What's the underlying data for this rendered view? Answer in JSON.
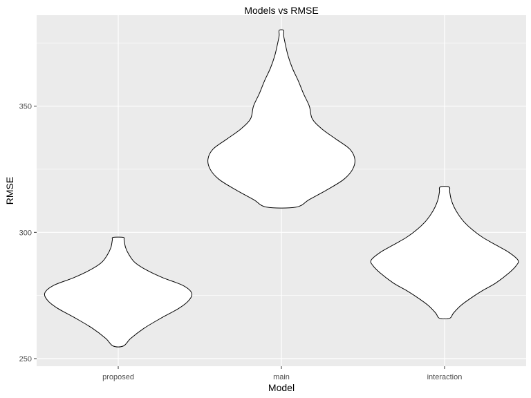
{
  "chart_data": {
    "type": "violin",
    "title": "Models vs RMSE",
    "xlabel": "Model",
    "ylabel": "RMSE",
    "categories": [
      "proposed",
      "main",
      "interaction"
    ],
    "ylim": [
      247,
      386
    ],
    "yticks": [
      250,
      300,
      350
    ],
    "grid": true,
    "legend": "none",
    "colors": {
      "panel_background": "#ebebeb",
      "grid": "#ffffff",
      "violin_fill": "#ffffff",
      "violin_outline": "#000000",
      "tick_text": "#4d4d4d",
      "tick_mark": "#333333"
    },
    "series": [
      {
        "category": "proposed",
        "min": 255,
        "max": 298,
        "density": [
          [
            255,
            0.07
          ],
          [
            258,
            0.17
          ],
          [
            262,
            0.35
          ],
          [
            266,
            0.58
          ],
          [
            270,
            0.83
          ],
          [
            273,
            0.96
          ],
          [
            276,
            1.0
          ],
          [
            279,
            0.88
          ],
          [
            282,
            0.61
          ],
          [
            285,
            0.39
          ],
          [
            288,
            0.23
          ],
          [
            291,
            0.15
          ],
          [
            294,
            0.1
          ],
          [
            297,
            0.08
          ],
          [
            298,
            0.07
          ]
        ]
      },
      {
        "category": "main",
        "min": 310,
        "max": 380,
        "density": [
          [
            310,
            0.2
          ],
          [
            313,
            0.38
          ],
          [
            317,
            0.63
          ],
          [
            321,
            0.85
          ],
          [
            325,
            0.97
          ],
          [
            329,
            1.0
          ],
          [
            333,
            0.93
          ],
          [
            337,
            0.74
          ],
          [
            341,
            0.55
          ],
          [
            345,
            0.42
          ],
          [
            350,
            0.38
          ],
          [
            355,
            0.3
          ],
          [
            360,
            0.23
          ],
          [
            365,
            0.15
          ],
          [
            370,
            0.09
          ],
          [
            375,
            0.05
          ],
          [
            378,
            0.03
          ],
          [
            380,
            0.03
          ]
        ]
      },
      {
        "category": "interaction",
        "min": 266,
        "max": 318,
        "density": [
          [
            266,
            0.07
          ],
          [
            268,
            0.12
          ],
          [
            271,
            0.22
          ],
          [
            274,
            0.36
          ],
          [
            277,
            0.52
          ],
          [
            280,
            0.7
          ],
          [
            284,
            0.88
          ],
          [
            287,
            0.98
          ],
          [
            289,
            1.0
          ],
          [
            292,
            0.88
          ],
          [
            295,
            0.7
          ],
          [
            298,
            0.52
          ],
          [
            301,
            0.38
          ],
          [
            304,
            0.27
          ],
          [
            307,
            0.19
          ],
          [
            310,
            0.13
          ],
          [
            313,
            0.09
          ],
          [
            316,
            0.07
          ],
          [
            318,
            0.06
          ]
        ]
      }
    ]
  }
}
